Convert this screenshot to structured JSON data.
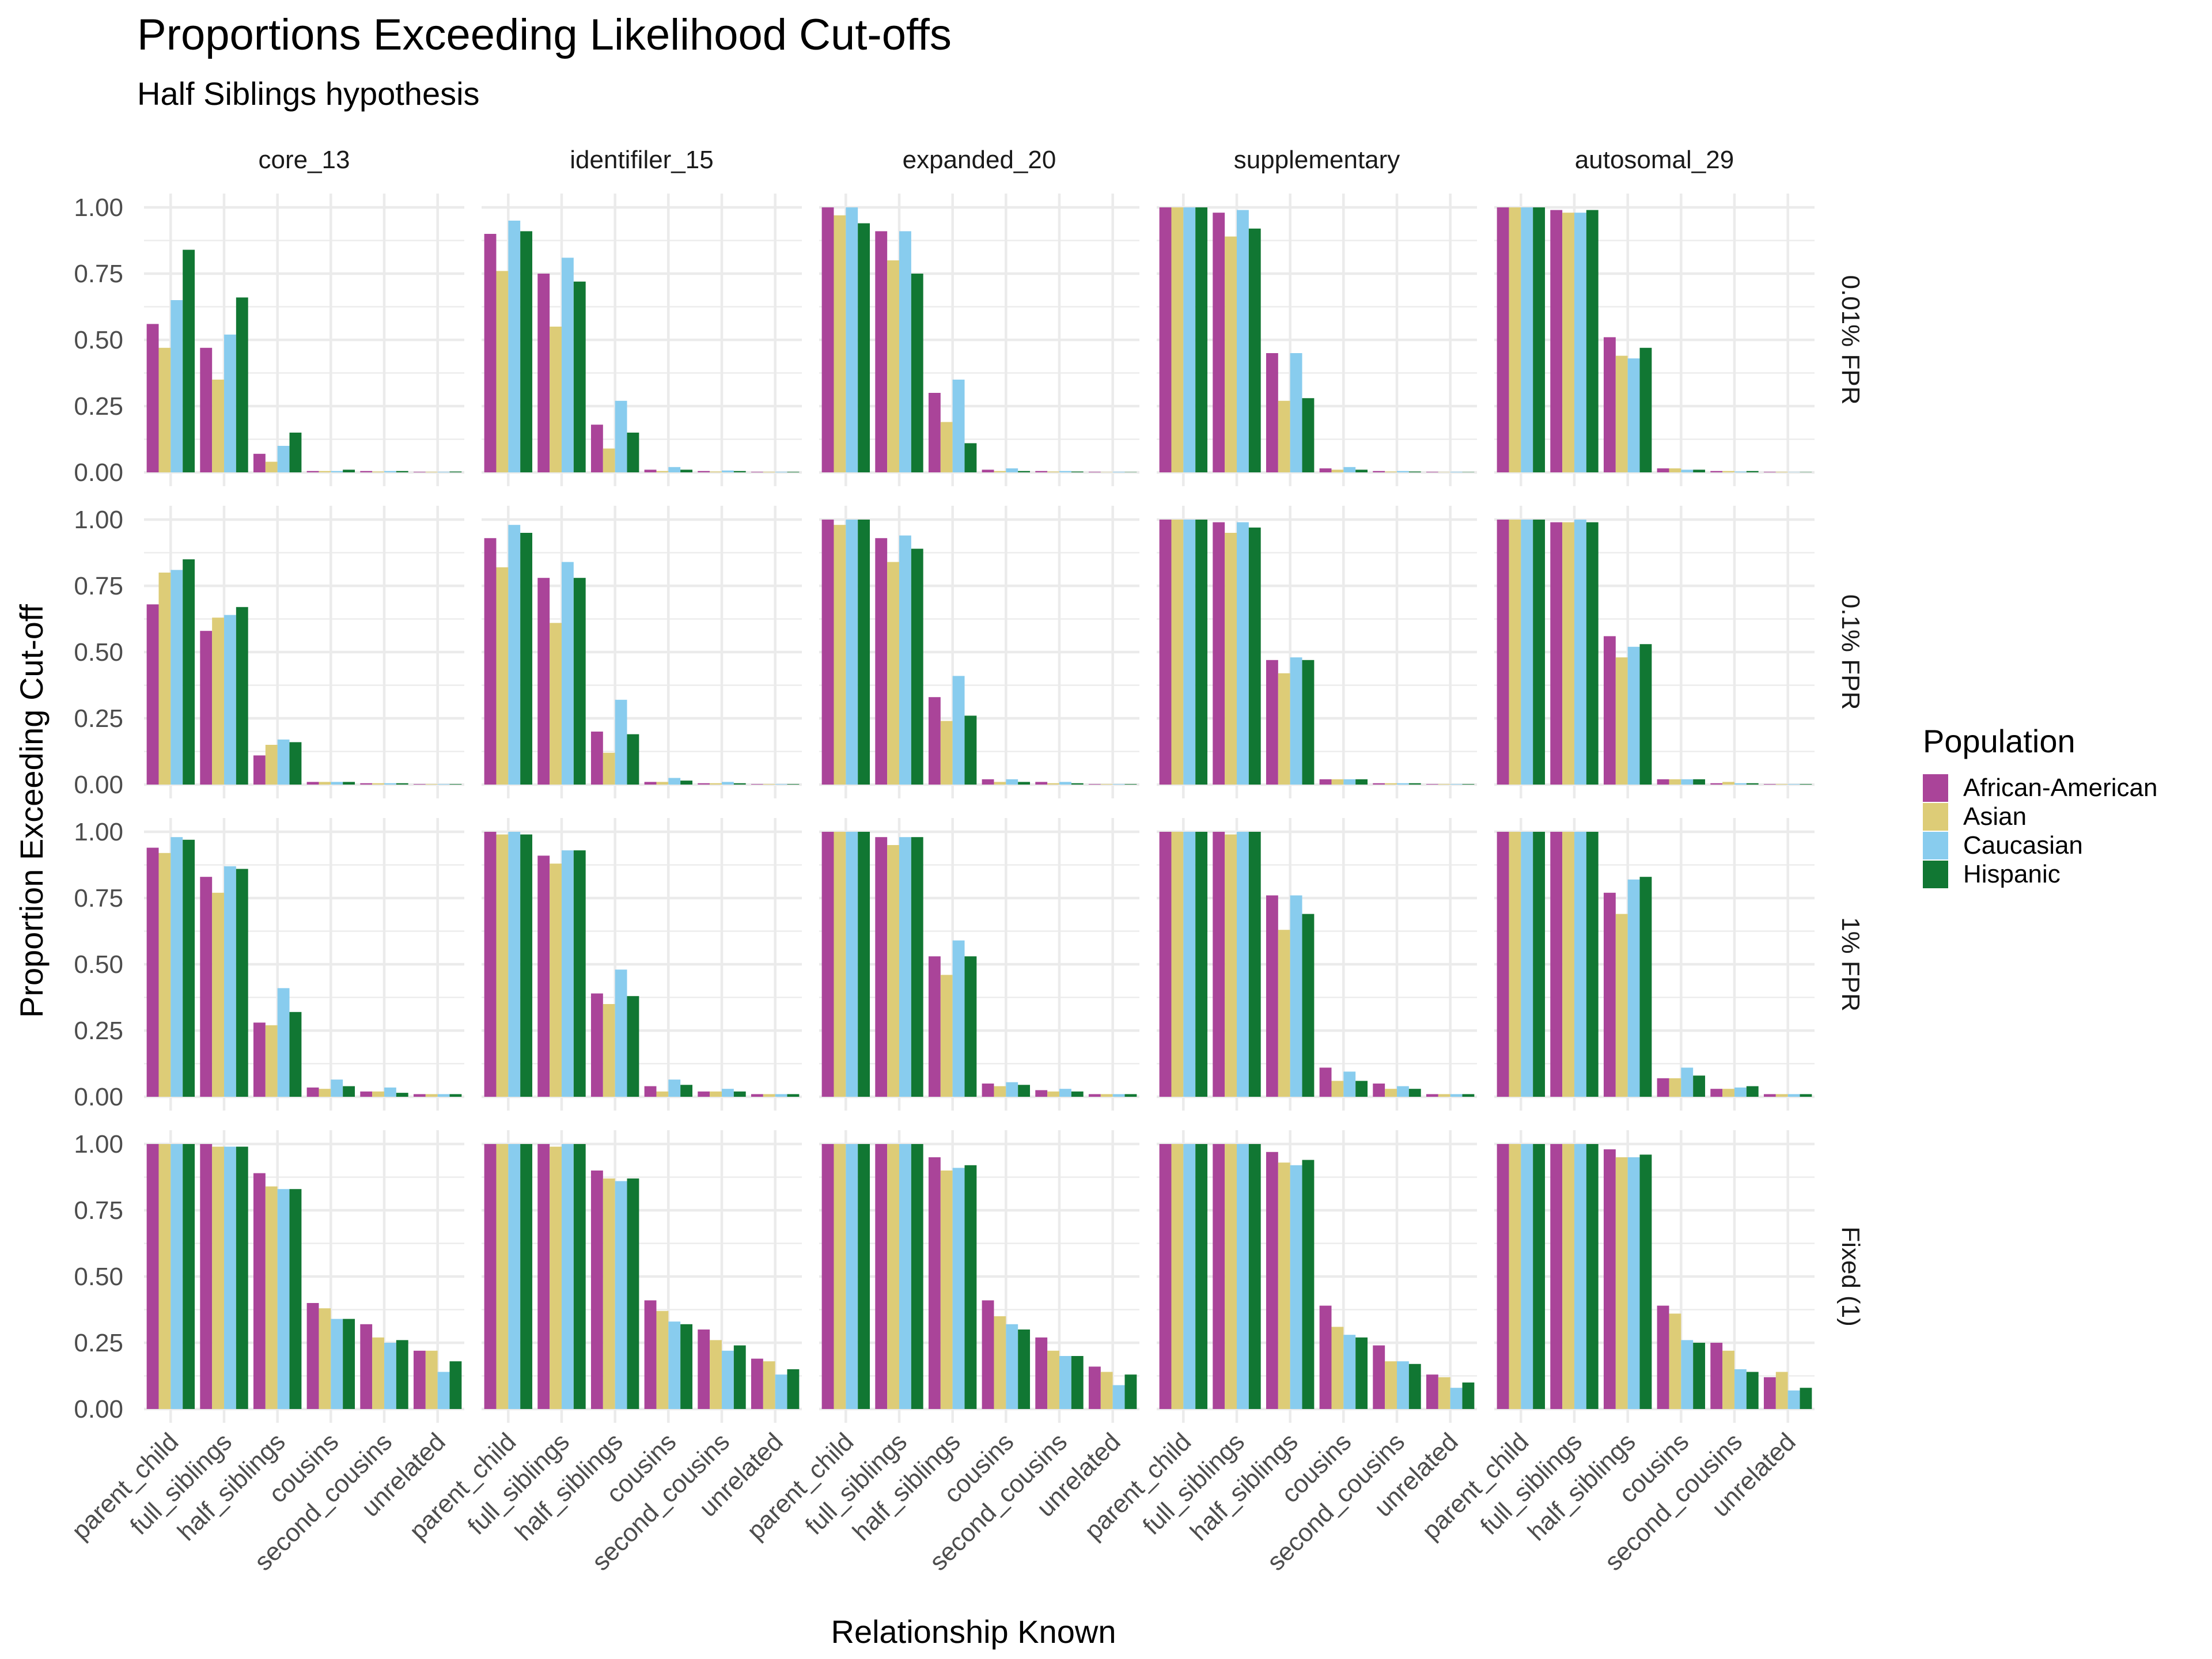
{
  "chart_data": {
    "type": "bar",
    "title": "Proportions Exceeding Likelihood Cut-offs",
    "subtitle": "Half Siblings hypothesis",
    "xlabel": "Relationship Known",
    "ylabel": "Proportion Exceeding Cut-off",
    "ylim": [
      0,
      1
    ],
    "yticks": [
      "0.00",
      "0.25",
      "0.50",
      "0.75",
      "1.00"
    ],
    "grid": true,
    "legend": {
      "title": "Population",
      "position": "right"
    },
    "categories": [
      "parent_child",
      "full_siblings",
      "half_siblings",
      "cousins",
      "second_cousins",
      "unrelated"
    ],
    "populations": [
      {
        "name": "African-American",
        "color": "#AA4499"
      },
      {
        "name": "Asian",
        "color": "#DDCC77"
      },
      {
        "name": "Caucasian",
        "color": "#88CCEE"
      },
      {
        "name": "Hispanic",
        "color": "#117733"
      }
    ],
    "columns": [
      "core_13",
      "identifiler_15",
      "expanded_20",
      "supplementary",
      "autosomal_29"
    ],
    "rows": [
      "0.01% FPR",
      "0.1% FPR",
      "1% FPR",
      "Fixed (1)"
    ],
    "values": [
      [
        [
          [
            0.56,
            0.47,
            0.65,
            0.84
          ],
          [
            0.47,
            0.35,
            0.52,
            0.66
          ],
          [
            0.07,
            0.04,
            0.1,
            0.15
          ],
          [
            0.005,
            0.005,
            0.005,
            0.01
          ],
          [
            0.005,
            0.003,
            0.005,
            0.005
          ],
          [
            0.002,
            0.002,
            0.002,
            0.003
          ]
        ],
        [
          [
            0.9,
            0.76,
            0.95,
            0.91
          ],
          [
            0.75,
            0.55,
            0.81,
            0.72
          ],
          [
            0.18,
            0.09,
            0.27,
            0.15
          ],
          [
            0.01,
            0.005,
            0.02,
            0.01
          ],
          [
            0.005,
            0.003,
            0.007,
            0.005
          ],
          [
            0.002,
            0.002,
            0.002,
            0.002
          ]
        ],
        [
          [
            1.0,
            0.97,
            1.0,
            0.94
          ],
          [
            0.91,
            0.8,
            0.91,
            0.75
          ],
          [
            0.3,
            0.19,
            0.35,
            0.11
          ],
          [
            0.01,
            0.005,
            0.015,
            0.005
          ],
          [
            0.005,
            0.003,
            0.005,
            0.003
          ],
          [
            0.002,
            0.001,
            0.002,
            0.001
          ]
        ],
        [
          [
            1.0,
            1.0,
            1.0,
            1.0
          ],
          [
            0.98,
            0.89,
            0.99,
            0.92
          ],
          [
            0.45,
            0.27,
            0.45,
            0.28
          ],
          [
            0.015,
            0.01,
            0.02,
            0.01
          ],
          [
            0.005,
            0.003,
            0.005,
            0.003
          ],
          [
            0.002,
            0.001,
            0.002,
            0.001
          ]
        ],
        [
          [
            1.0,
            1.0,
            1.0,
            1.0
          ],
          [
            0.99,
            0.98,
            0.98,
            0.99
          ],
          [
            0.51,
            0.44,
            0.43,
            0.47
          ],
          [
            0.015,
            0.015,
            0.01,
            0.01
          ],
          [
            0.005,
            0.005,
            0.003,
            0.005
          ],
          [
            0.002,
            0.002,
            0.001,
            0.001
          ]
        ]
      ],
      [
        [
          [
            0.68,
            0.8,
            0.81,
            0.85
          ],
          [
            0.58,
            0.63,
            0.64,
            0.67
          ],
          [
            0.11,
            0.15,
            0.17,
            0.16
          ],
          [
            0.01,
            0.01,
            0.01,
            0.01
          ],
          [
            0.005,
            0.005,
            0.005,
            0.005
          ],
          [
            0.002,
            0.002,
            0.002,
            0.002
          ]
        ],
        [
          [
            0.93,
            0.82,
            0.98,
            0.95
          ],
          [
            0.78,
            0.61,
            0.84,
            0.78
          ],
          [
            0.2,
            0.12,
            0.32,
            0.19
          ],
          [
            0.01,
            0.01,
            0.025,
            0.015
          ],
          [
            0.005,
            0.005,
            0.01,
            0.005
          ],
          [
            0.002,
            0.002,
            0.002,
            0.002
          ]
        ],
        [
          [
            1.0,
            0.98,
            1.0,
            1.0
          ],
          [
            0.93,
            0.84,
            0.94,
            0.89
          ],
          [
            0.33,
            0.24,
            0.41,
            0.26
          ],
          [
            0.02,
            0.01,
            0.02,
            0.01
          ],
          [
            0.01,
            0.005,
            0.01,
            0.005
          ],
          [
            0.002,
            0.002,
            0.002,
            0.002
          ]
        ],
        [
          [
            1.0,
            1.0,
            1.0,
            1.0
          ],
          [
            0.99,
            0.95,
            0.99,
            0.97
          ],
          [
            0.47,
            0.42,
            0.48,
            0.47
          ],
          [
            0.02,
            0.02,
            0.02,
            0.02
          ],
          [
            0.005,
            0.005,
            0.005,
            0.005
          ],
          [
            0.002,
            0.002,
            0.002,
            0.002
          ]
        ],
        [
          [
            1.0,
            1.0,
            1.0,
            1.0
          ],
          [
            0.99,
            0.99,
            1.0,
            0.99
          ],
          [
            0.56,
            0.48,
            0.52,
            0.53
          ],
          [
            0.02,
            0.02,
            0.02,
            0.02
          ],
          [
            0.005,
            0.01,
            0.005,
            0.005
          ],
          [
            0.002,
            0.002,
            0.002,
            0.002
          ]
        ]
      ],
      [
        [
          [
            0.94,
            0.92,
            0.98,
            0.97
          ],
          [
            0.83,
            0.77,
            0.87,
            0.86
          ],
          [
            0.28,
            0.27,
            0.41,
            0.32
          ],
          [
            0.035,
            0.03,
            0.065,
            0.04
          ],
          [
            0.02,
            0.02,
            0.035,
            0.015
          ],
          [
            0.01,
            0.01,
            0.01,
            0.01
          ]
        ],
        [
          [
            1.0,
            0.99,
            1.0,
            0.99
          ],
          [
            0.91,
            0.88,
            0.93,
            0.93
          ],
          [
            0.39,
            0.35,
            0.48,
            0.38
          ],
          [
            0.04,
            0.02,
            0.065,
            0.045
          ],
          [
            0.02,
            0.02,
            0.03,
            0.02
          ],
          [
            0.01,
            0.01,
            0.01,
            0.01
          ]
        ],
        [
          [
            1.0,
            1.0,
            1.0,
            1.0
          ],
          [
            0.98,
            0.95,
            0.98,
            0.98
          ],
          [
            0.53,
            0.46,
            0.59,
            0.53
          ],
          [
            0.05,
            0.04,
            0.055,
            0.045
          ],
          [
            0.025,
            0.02,
            0.03,
            0.02
          ],
          [
            0.01,
            0.01,
            0.01,
            0.01
          ]
        ],
        [
          [
            1.0,
            1.0,
            1.0,
            1.0
          ],
          [
            1.0,
            0.99,
            1.0,
            1.0
          ],
          [
            0.76,
            0.63,
            0.76,
            0.69
          ],
          [
            0.11,
            0.06,
            0.095,
            0.06
          ],
          [
            0.05,
            0.03,
            0.04,
            0.03
          ],
          [
            0.01,
            0.01,
            0.01,
            0.01
          ]
        ],
        [
          [
            1.0,
            1.0,
            1.0,
            1.0
          ],
          [
            1.0,
            1.0,
            1.0,
            1.0
          ],
          [
            0.77,
            0.69,
            0.82,
            0.83
          ],
          [
            0.07,
            0.07,
            0.11,
            0.08
          ],
          [
            0.03,
            0.03,
            0.035,
            0.04
          ],
          [
            0.01,
            0.01,
            0.01,
            0.01
          ]
        ]
      ],
      [
        [
          [
            1.0,
            1.0,
            1.0,
            1.0
          ],
          [
            1.0,
            0.99,
            0.99,
            0.99
          ],
          [
            0.89,
            0.84,
            0.83,
            0.83
          ],
          [
            0.4,
            0.38,
            0.34,
            0.34
          ],
          [
            0.32,
            0.27,
            0.25,
            0.26
          ],
          [
            0.22,
            0.22,
            0.14,
            0.18
          ]
        ],
        [
          [
            1.0,
            1.0,
            1.0,
            1.0
          ],
          [
            1.0,
            0.99,
            1.0,
            1.0
          ],
          [
            0.9,
            0.87,
            0.86,
            0.87
          ],
          [
            0.41,
            0.37,
            0.33,
            0.32
          ],
          [
            0.3,
            0.26,
            0.22,
            0.24
          ],
          [
            0.19,
            0.18,
            0.13,
            0.15
          ]
        ],
        [
          [
            1.0,
            1.0,
            1.0,
            1.0
          ],
          [
            1.0,
            1.0,
            1.0,
            1.0
          ],
          [
            0.95,
            0.9,
            0.91,
            0.92
          ],
          [
            0.41,
            0.35,
            0.32,
            0.3
          ],
          [
            0.27,
            0.22,
            0.2,
            0.2
          ],
          [
            0.16,
            0.14,
            0.09,
            0.13
          ]
        ],
        [
          [
            1.0,
            1.0,
            1.0,
            1.0
          ],
          [
            1.0,
            1.0,
            1.0,
            1.0
          ],
          [
            0.97,
            0.93,
            0.92,
            0.94
          ],
          [
            0.39,
            0.31,
            0.28,
            0.27
          ],
          [
            0.24,
            0.18,
            0.18,
            0.17
          ],
          [
            0.13,
            0.12,
            0.08,
            0.1
          ]
        ],
        [
          [
            1.0,
            1.0,
            1.0,
            1.0
          ],
          [
            1.0,
            1.0,
            1.0,
            1.0
          ],
          [
            0.98,
            0.95,
            0.95,
            0.96
          ],
          [
            0.39,
            0.36,
            0.26,
            0.25
          ],
          [
            0.25,
            0.22,
            0.15,
            0.14
          ],
          [
            0.12,
            0.14,
            0.07,
            0.08
          ]
        ]
      ]
    ]
  }
}
